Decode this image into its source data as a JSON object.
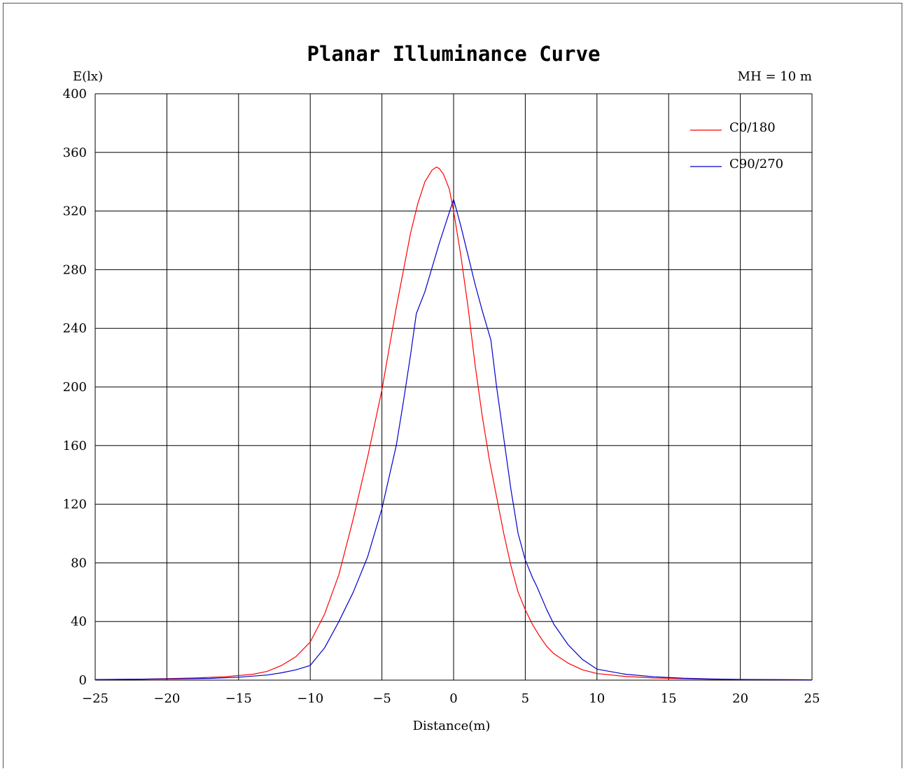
{
  "chart_data": {
    "type": "line",
    "title": "Planar Illuminance Curve",
    "ylabel": "E(lx)",
    "xlabel": "Distance(m)",
    "annotation": "MH = 10 m",
    "xlim": [
      -25,
      25
    ],
    "ylim": [
      0,
      400
    ],
    "x_ticks": [
      -25,
      -20,
      -15,
      -10,
      -5,
      0,
      5,
      10,
      15,
      20,
      25
    ],
    "x_tick_labels": [
      "−25",
      "−20",
      "−15",
      "−10",
      "−5",
      "0",
      "5",
      "10",
      "15",
      "20",
      "25"
    ],
    "y_ticks": [
      0,
      40,
      80,
      120,
      160,
      200,
      240,
      280,
      320,
      360,
      400
    ],
    "y_tick_labels": [
      "0",
      "40",
      "80",
      "120",
      "160",
      "200",
      "240",
      "280",
      "320",
      "360",
      "400"
    ],
    "grid": true,
    "legend_position": "top-right",
    "series": [
      {
        "name": "C0/180",
        "color": "#ff0000",
        "x": [
          -25,
          -22,
          -20,
          -18,
          -16,
          -14,
          -13,
          -12,
          -11,
          -10,
          -9,
          -8,
          -7,
          -6,
          -5,
          -4,
          -3,
          -2.5,
          -2,
          -1.5,
          -1.2,
          -1,
          -0.7,
          -0.3,
          0,
          0.5,
          1,
          1.5,
          2,
          2.5,
          3,
          3.5,
          4,
          4.5,
          5,
          5.5,
          6,
          6.5,
          7,
          8,
          9,
          10,
          12,
          14,
          16,
          18,
          20,
          22,
          25
        ],
        "y": [
          0.3,
          0.6,
          1,
          1.5,
          2.3,
          4,
          6,
          10,
          16,
          26,
          45,
          72,
          110,
          152,
          198,
          254,
          305,
          325,
          340,
          348,
          350,
          349,
          345,
          335,
          320,
          290,
          255,
          215,
          180,
          150,
          125,
          100,
          78,
          60,
          48,
          38,
          30,
          23,
          18,
          11.5,
          7,
          4.5,
          2.5,
          1.5,
          1,
          0.6,
          0.4,
          0.3,
          0.2
        ]
      },
      {
        "name": "C90/270",
        "color": "#0000cc",
        "x": [
          -25,
          -20,
          -17,
          -15,
          -13,
          -12,
          -11,
          -10,
          -9,
          -8,
          -7,
          -6,
          -5,
          -4,
          -3.5,
          -3,
          -2.6,
          -2,
          -1,
          0,
          0.5,
          1,
          1.5,
          2,
          2.6,
          3,
          3.5,
          4,
          4.5,
          5,
          5.5,
          5.8,
          6.5,
          7,
          8,
          9,
          10,
          12,
          14,
          16,
          18,
          20,
          25
        ],
        "y": [
          0.4,
          0.8,
          1.2,
          2,
          3.5,
          5,
          7,
          10,
          22,
          40,
          60,
          84,
          117,
          160,
          190,
          222,
          250,
          265,
          298,
          328,
          310,
          290,
          270,
          252,
          232,
          200,
          165,
          130,
          100,
          82,
          70,
          64,
          48,
          38,
          24,
          14,
          7.5,
          4,
          2.3,
          1.3,
          0.8,
          0.5,
          0.2
        ]
      }
    ]
  }
}
